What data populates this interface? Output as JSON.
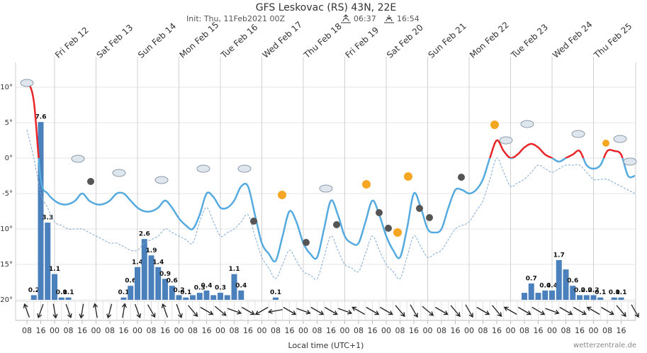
{
  "chart_data": {
    "type": "meteogram",
    "title": "GFS Leskovac (RS) 43N, 22E",
    "subtitle": "Init: Thu, 11Feb2021 00Z",
    "sunrise": "06:37",
    "sunset": "16:54",
    "x_label": "Local time (UTC+1)",
    "source": "wetterzentrale.de",
    "categories": [
      "08",
      null,
      "16",
      null,
      "00",
      null,
      "08",
      null,
      "16",
      null,
      "00",
      null,
      "08",
      null,
      "16",
      null,
      "00",
      null,
      "08",
      null,
      "16",
      null,
      "00",
      null,
      "08",
      null,
      "16",
      null,
      "00",
      null,
      "08",
      null,
      "16",
      null,
      "00",
      null,
      "08",
      null,
      "16",
      null,
      "00",
      null,
      "08",
      null,
      "16",
      null,
      "00",
      null,
      "08",
      null,
      "16",
      null,
      "00",
      null,
      "08",
      null,
      "16",
      null,
      "00",
      null,
      "08",
      null,
      "16",
      null,
      "00",
      null,
      "08",
      null,
      "16",
      null,
      "00",
      null,
      "08",
      null,
      "16",
      null,
      "00",
      null,
      "08",
      null,
      "16",
      null,
      "00",
      null,
      "08",
      null,
      "16",
      null,
      null
    ],
    "day_labels": [
      "Fri Feb 12",
      "Sat Feb 13",
      "Sun Feb 14",
      "Mon Feb 15",
      "Tue Feb 16",
      "Wed Feb 17",
      "Thu Feb 18",
      "Fri Feb 19",
      "Sat Feb 20",
      "Sun Feb 21",
      "Mon Feb 22",
      "Tue Feb 23",
      "Wed Feb 24",
      "Thu Feb 25"
    ],
    "ylim": [
      -20,
      13.5
    ],
    "yticks": [
      {
        "value": 10,
        "label": "10°"
      },
      {
        "value": 5,
        "label": "5°"
      },
      {
        "value": 0,
        "label": "0°"
      },
      {
        "value": -5,
        "label": "-5°"
      },
      {
        "value": -10,
        "label": "-10°"
      },
      {
        "value": -15,
        "label": "-15°"
      },
      {
        "value": -20,
        "label": "-20°"
      }
    ],
    "y2lim": [
      0,
      10.15
    ],
    "grid": true,
    "series": [
      {
        "name": "temperature",
        "kind": "line",
        "color": "#55aae0",
        "color_above_zero": "#e8262a",
        "values": [
          11,
          8,
          -3,
          -5,
          -6,
          -6.5,
          -6.5,
          -6,
          -5,
          -6,
          -6.5,
          -6.5,
          -6,
          -5,
          -5,
          -6,
          -7,
          -7.5,
          -7.5,
          -7,
          -6,
          -7,
          -8.5,
          -9.5,
          -10,
          -8,
          -5,
          -5.5,
          -7,
          -7,
          -6,
          -4,
          -4,
          -8,
          -12,
          -13.5,
          -14.5,
          -11,
          -7.5,
          -9,
          -12,
          -13.5,
          -14,
          -10,
          -6,
          -8,
          -11,
          -12,
          -12,
          -9,
          -6,
          -8,
          -11,
          -13,
          -14,
          -10,
          -5,
          -7,
          -10,
          -10.5,
          -10,
          -7,
          -4.5,
          -4.5,
          -5,
          -4.5,
          -3,
          0,
          2.5,
          1,
          0,
          0.5,
          1.5,
          2,
          1.5,
          0.5,
          0,
          -0.5,
          0,
          0.5,
          1,
          -1,
          -1.5,
          -1,
          1,
          1,
          0.5,
          -2.5,
          -2.5
        ]
      },
      {
        "name": "dewpoint",
        "kind": "dashed",
        "color": "#7fa9d4",
        "values": [
          4,
          0,
          -5,
          -7,
          -9,
          -9.5,
          -10,
          -10,
          -10,
          -10.5,
          -11,
          -11.5,
          -12,
          -12,
          -12.5,
          -13,
          -13,
          -12,
          -11.5,
          -11,
          -10,
          -10.5,
          -11,
          -11.5,
          -12,
          -9,
          -7,
          -9,
          -11,
          -10.5,
          -10,
          -9,
          -8,
          -11,
          -14,
          -15.5,
          -17,
          -15,
          -13,
          -14.5,
          -16,
          -16.5,
          -17,
          -14,
          -11,
          -13,
          -15,
          -15.5,
          -16,
          -13.5,
          -11,
          -13,
          -15,
          -16,
          -17,
          -14,
          -11,
          -12.5,
          -14,
          -13.5,
          -13,
          -11.5,
          -10,
          -9.5,
          -9,
          -7.5,
          -6,
          -3,
          0,
          -2,
          -4,
          -3.5,
          -3,
          -2,
          -1,
          -1.5,
          -2,
          -1.5,
          -1,
          -1,
          -1,
          -2,
          -3,
          -3,
          -3,
          -3.5,
          -4,
          -4.5,
          -5
        ]
      },
      {
        "name": "precipitation",
        "kind": "bar",
        "axis": "y2",
        "color": "#4a80bb",
        "values": [
          0,
          0.2,
          7.6,
          3.3,
          1.1,
          0.1,
          0.1,
          0,
          0,
          0,
          0,
          0,
          0,
          0,
          0.1,
          0.6,
          1.4,
          2.6,
          1.9,
          1.4,
          0.9,
          0.6,
          0.2,
          0.1,
          0.2,
          0.3,
          0.4,
          0.2,
          0.3,
          0.2,
          1.1,
          0.4,
          0,
          0,
          0,
          0,
          0.1,
          0,
          0,
          0,
          0,
          0,
          0,
          0,
          0,
          0,
          0,
          0,
          0,
          0,
          0,
          0,
          0,
          0,
          0,
          0,
          0,
          0,
          0,
          0,
          0,
          0,
          0,
          0,
          0,
          0,
          0,
          0,
          0,
          0,
          0,
          0,
          0.3,
          0.7,
          0.3,
          0.4,
          0.4,
          1.7,
          1.3,
          0.6,
          0.2,
          0.2,
          0.2,
          0.1,
          0,
          0.1,
          0.1,
          0,
          0
        ],
        "value_labels": [
          null,
          "0.2",
          "7.6",
          "3.3",
          "1.1",
          "0.1",
          "0.1",
          null,
          null,
          null,
          null,
          null,
          null,
          null,
          "0.1",
          "0.6",
          "1.4",
          "2.6",
          "1.9",
          "1.4",
          "0.9",
          "0.6",
          "0.2",
          "0.1",
          null,
          "0.3",
          "0.4",
          null,
          "0.3",
          null,
          "1.1",
          "0.4",
          null,
          null,
          null,
          null,
          "0.1",
          null,
          null,
          null,
          null,
          null,
          null,
          null,
          null,
          null,
          null,
          null,
          null,
          null,
          null,
          null,
          null,
          null,
          null,
          null,
          null,
          null,
          null,
          null,
          null,
          null,
          null,
          null,
          null,
          null,
          null,
          null,
          null,
          null,
          null,
          null,
          null,
          "0.7",
          null,
          "0.4",
          "0.4",
          "1.7",
          null,
          "0.6",
          "0.2",
          "0.2",
          "0.2",
          "0.1",
          null,
          "0.1",
          "0.1",
          null,
          null
        ]
      }
    ],
    "wind_direction": [
      160,
      20,
      350,
      340,
      10,
      170,
      15,
      190,
      340,
      330,
      160,
      340,
      320,
      300,
      310,
      290,
      300,
      60,
      80,
      300,
      290,
      300,
      300,
      290,
      120,
      300,
      300,
      320,
      330,
      310,
      300,
      320,
      330,
      300,
      320,
      120,
      300,
      300,
      290,
      300,
      300,
      120,
      300,
      320,
      330
    ]
  }
}
